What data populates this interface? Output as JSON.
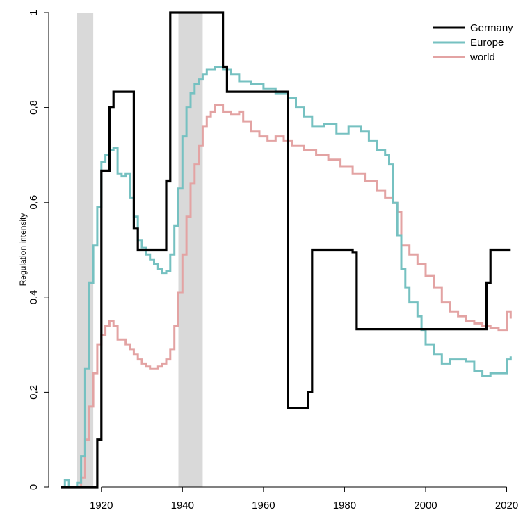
{
  "chart_data": {
    "type": "line",
    "ylabel": "Regulation intensity",
    "xlim": [
      1907,
      2023
    ],
    "ylim": [
      0,
      1
    ],
    "x_ticks": [
      1920,
      1940,
      1960,
      1980,
      2000,
      2020
    ],
    "y_ticks": [
      {
        "value": 0,
        "label": "0"
      },
      {
        "value": 0.2,
        "label": "0,2"
      },
      {
        "value": 0.4,
        "label": "0,4"
      },
      {
        "value": 0.6,
        "label": "0,6"
      },
      {
        "value": 0.8,
        "label": "0,8"
      },
      {
        "value": 1,
        "label": "1"
      }
    ],
    "grid": false,
    "legend_position": "top-right",
    "shaded_periods": [
      [
        1914,
        1918
      ],
      [
        1939,
        1945
      ]
    ],
    "series": [
      {
        "name": "world",
        "color": "#e3a3a3",
        "points": [
          [
            1910,
            0
          ],
          [
            1915,
            0.02
          ],
          [
            1916,
            0.1
          ],
          [
            1917,
            0.17
          ],
          [
            1918,
            0.24
          ],
          [
            1919,
            0.3
          ],
          [
            1920,
            0.32
          ],
          [
            1921,
            0.34
          ],
          [
            1922,
            0.35
          ],
          [
            1923,
            0.34
          ],
          [
            1924,
            0.31
          ],
          [
            1925,
            0.31
          ],
          [
            1926,
            0.3
          ],
          [
            1927,
            0.29
          ],
          [
            1928,
            0.28
          ],
          [
            1929,
            0.27
          ],
          [
            1930,
            0.26
          ],
          [
            1931,
            0.255
          ],
          [
            1932,
            0.25
          ],
          [
            1933,
            0.25
          ],
          [
            1934,
            0.255
          ],
          [
            1935,
            0.26
          ],
          [
            1936,
            0.27
          ],
          [
            1937,
            0.29
          ],
          [
            1938,
            0.34
          ],
          [
            1939,
            0.41
          ],
          [
            1940,
            0.49
          ],
          [
            1941,
            0.57
          ],
          [
            1942,
            0.64
          ],
          [
            1943,
            0.68
          ],
          [
            1944,
            0.72
          ],
          [
            1945,
            0.76
          ],
          [
            1946,
            0.78
          ],
          [
            1947,
            0.79
          ],
          [
            1948,
            0.805
          ],
          [
            1950,
            0.79
          ],
          [
            1952,
            0.785
          ],
          [
            1954,
            0.79
          ],
          [
            1955,
            0.77
          ],
          [
            1957,
            0.75
          ],
          [
            1959,
            0.74
          ],
          [
            1961,
            0.73
          ],
          [
            1963,
            0.74
          ],
          [
            1965,
            0.73
          ],
          [
            1967,
            0.72
          ],
          [
            1970,
            0.71
          ],
          [
            1973,
            0.7
          ],
          [
            1976,
            0.69
          ],
          [
            1979,
            0.675
          ],
          [
            1982,
            0.66
          ],
          [
            1985,
            0.645
          ],
          [
            1988,
            0.625
          ],
          [
            1990,
            0.61
          ],
          [
            1992,
            0.6
          ],
          [
            1993,
            0.58
          ],
          [
            1994,
            0.51
          ],
          [
            1996,
            0.49
          ],
          [
            1998,
            0.47
          ],
          [
            2000,
            0.445
          ],
          [
            2002,
            0.42
          ],
          [
            2004,
            0.39
          ],
          [
            2006,
            0.37
          ],
          [
            2008,
            0.36
          ],
          [
            2010,
            0.35
          ],
          [
            2012,
            0.345
          ],
          [
            2014,
            0.34
          ],
          [
            2016,
            0.335
          ],
          [
            2018,
            0.33
          ],
          [
            2020,
            0.37
          ],
          [
            2021,
            0.355
          ]
        ]
      },
      {
        "name": "Europe",
        "color": "#76c1c1",
        "points": [
          [
            1910,
            0
          ],
          [
            1911,
            0.015
          ],
          [
            1912,
            0
          ],
          [
            1914,
            0.01
          ],
          [
            1915,
            0.065
          ],
          [
            1916,
            0.25
          ],
          [
            1917,
            0.43
          ],
          [
            1918,
            0.51
          ],
          [
            1919,
            0.59
          ],
          [
            1920,
            0.685
          ],
          [
            1921,
            0.7
          ],
          [
            1922,
            0.71
          ],
          [
            1923,
            0.715
          ],
          [
            1924,
            0.66
          ],
          [
            1925,
            0.655
          ],
          [
            1926,
            0.66
          ],
          [
            1927,
            0.61
          ],
          [
            1928,
            0.57
          ],
          [
            1929,
            0.52
          ],
          [
            1930,
            0.505
          ],
          [
            1931,
            0.49
          ],
          [
            1932,
            0.48
          ],
          [
            1933,
            0.47
          ],
          [
            1934,
            0.46
          ],
          [
            1935,
            0.45
          ],
          [
            1936,
            0.455
          ],
          [
            1937,
            0.49
          ],
          [
            1938,
            0.55
          ],
          [
            1939,
            0.63
          ],
          [
            1940,
            0.74
          ],
          [
            1941,
            0.8
          ],
          [
            1942,
            0.83
          ],
          [
            1943,
            0.85
          ],
          [
            1944,
            0.86
          ],
          [
            1945,
            0.87
          ],
          [
            1946,
            0.88
          ],
          [
            1948,
            0.885
          ],
          [
            1950,
            0.88
          ],
          [
            1952,
            0.87
          ],
          [
            1954,
            0.855
          ],
          [
            1957,
            0.85
          ],
          [
            1960,
            0.84
          ],
          [
            1963,
            0.83
          ],
          [
            1966,
            0.82
          ],
          [
            1968,
            0.8
          ],
          [
            1970,
            0.78
          ],
          [
            1972,
            0.76
          ],
          [
            1975,
            0.765
          ],
          [
            1978,
            0.745
          ],
          [
            1981,
            0.76
          ],
          [
            1984,
            0.75
          ],
          [
            1986,
            0.73
          ],
          [
            1988,
            0.71
          ],
          [
            1990,
            0.7
          ],
          [
            1991,
            0.68
          ],
          [
            1992,
            0.6
          ],
          [
            1993,
            0.53
          ],
          [
            1994,
            0.46
          ],
          [
            1995,
            0.42
          ],
          [
            1996,
            0.39
          ],
          [
            1998,
            0.36
          ],
          [
            1999,
            0.33
          ],
          [
            2000,
            0.3
          ],
          [
            2002,
            0.28
          ],
          [
            2004,
            0.26
          ],
          [
            2006,
            0.27
          ],
          [
            2010,
            0.265
          ],
          [
            2012,
            0.245
          ],
          [
            2014,
            0.235
          ],
          [
            2016,
            0.24
          ],
          [
            2018,
            0.24
          ],
          [
            2020,
            0.27
          ],
          [
            2021,
            0.275
          ]
        ]
      },
      {
        "name": "Germany",
        "color": "#000000",
        "points": [
          [
            1910,
            0
          ],
          [
            1919,
            0.1
          ],
          [
            1920,
            0.667
          ],
          [
            1922,
            0.8
          ],
          [
            1923,
            0.833
          ],
          [
            1928,
            0.545
          ],
          [
            1929,
            0.5
          ],
          [
            1936,
            0.645
          ],
          [
            1937,
            1
          ],
          [
            1950,
            0.885
          ],
          [
            1951,
            0.833
          ],
          [
            1966,
            0.167
          ],
          [
            1971,
            0.2
          ],
          [
            1972,
            0.5
          ],
          [
            1982,
            0.495
          ],
          [
            1983,
            0.333
          ],
          [
            2015,
            0.43
          ],
          [
            2016,
            0.5
          ],
          [
            2021,
            0.5
          ]
        ]
      }
    ]
  }
}
